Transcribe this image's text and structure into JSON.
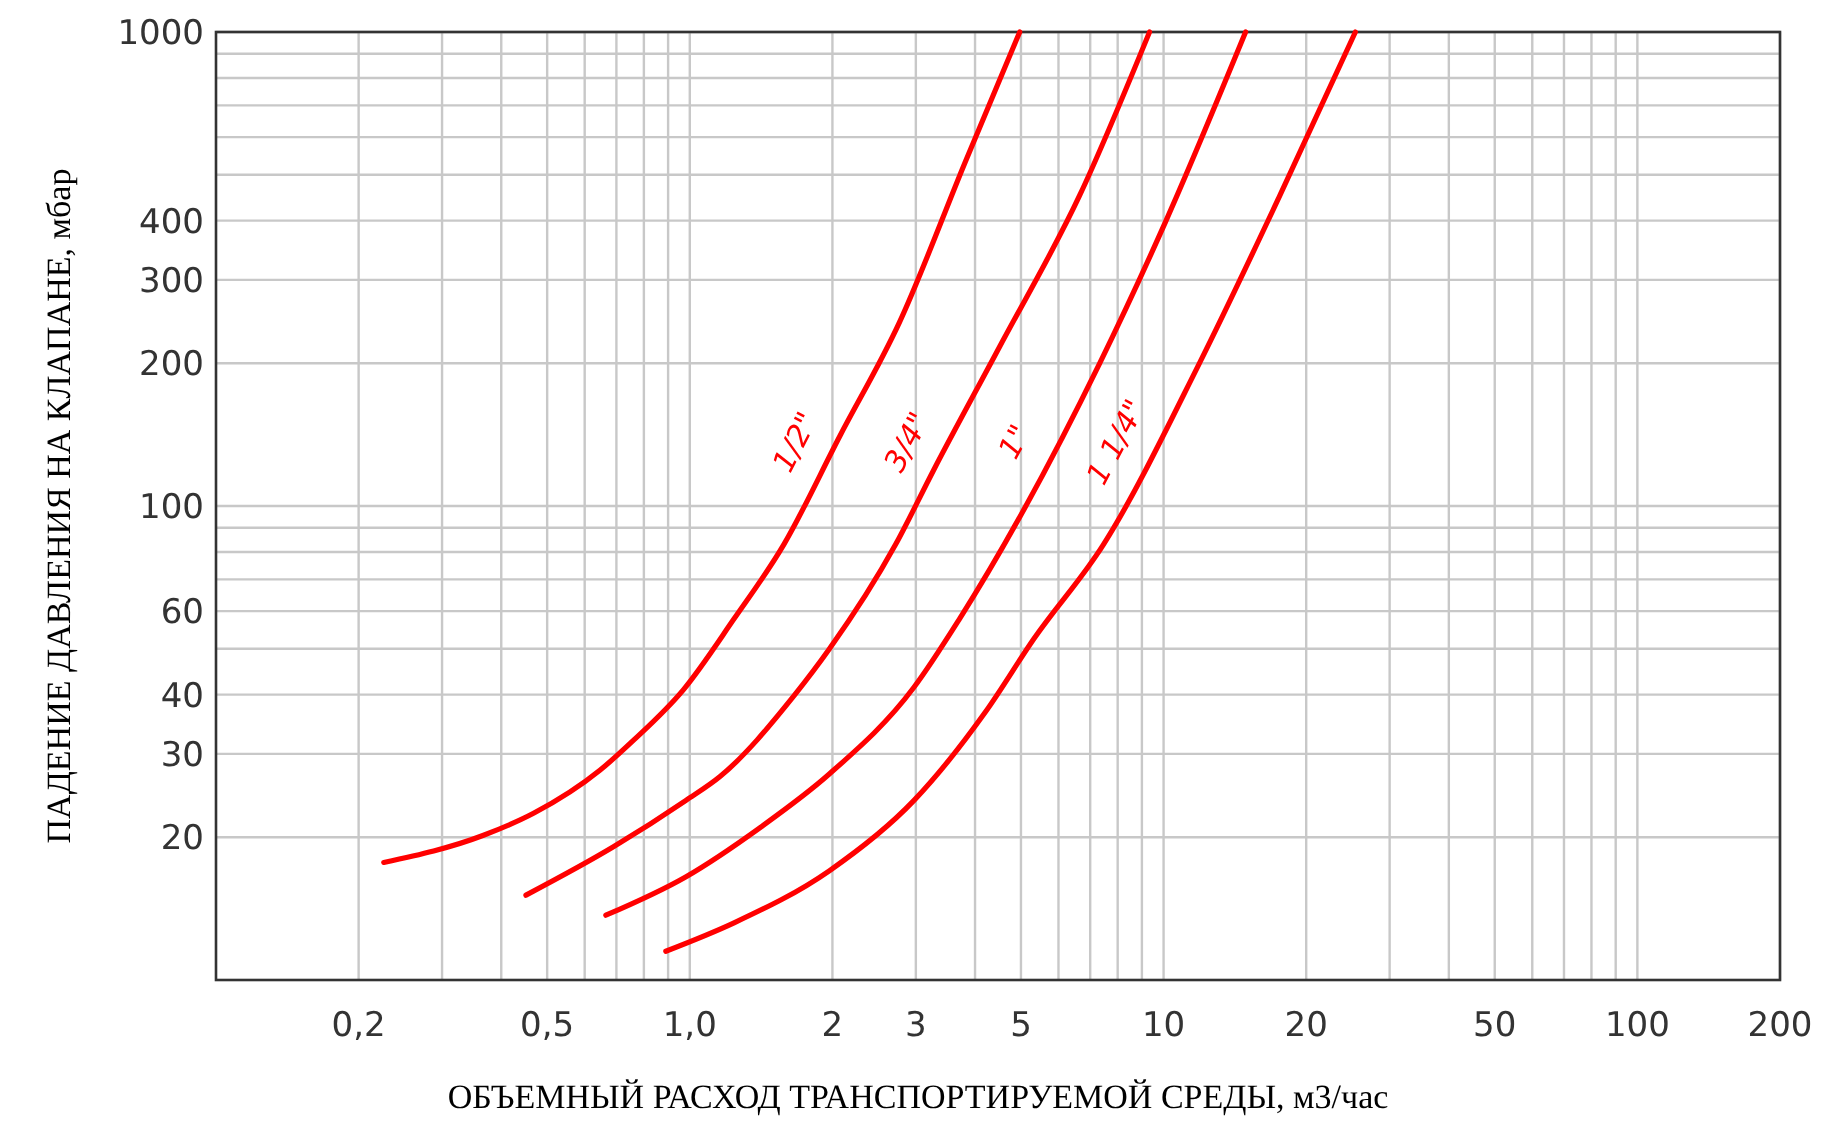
{
  "chart_data": {
    "type": "line",
    "xlabel": "ОБЪЕМНЫЙ РАСХОД ТРАНСПОРТИРУЕМОЙ СРЕДЫ, м3/час",
    "ylabel": "ПАДЕНИЕ ДАВЛЕНИЯ НА КЛАПАНЕ, мбар",
    "log": "xy",
    "grid": true,
    "marker": "none",
    "line_style": "solid",
    "xlim": [
      0.1,
      200
    ],
    "ylim": [
      10,
      1000
    ],
    "xticks": [
      {
        "value": 0.2,
        "label": "0,2"
      },
      {
        "value": 0.3,
        "label": null
      },
      {
        "value": 0.4,
        "label": null
      },
      {
        "value": 0.5,
        "label": "0,5"
      },
      {
        "value": 0.6,
        "label": null
      },
      {
        "value": 0.7,
        "label": null
      },
      {
        "value": 0.8,
        "label": null
      },
      {
        "value": 0.9,
        "label": null
      },
      {
        "value": 1,
        "label": "1,0"
      },
      2,
      3,
      {
        "value": 4,
        "label": null
      },
      5,
      {
        "value": 6,
        "label": null
      },
      {
        "value": 7,
        "label": null
      },
      {
        "value": 8,
        "label": null
      },
      {
        "value": 9,
        "label": null
      },
      10,
      20,
      {
        "value": 30,
        "label": null
      },
      {
        "value": 40,
        "label": null
      },
      50,
      {
        "value": 60,
        "label": null
      },
      {
        "value": 70,
        "label": null
      },
      {
        "value": 80,
        "label": null
      },
      {
        "value": 90,
        "label": null
      },
      100,
      200
    ],
    "yticks": [
      20,
      30,
      40,
      {
        "value": 50,
        "label": null
      },
      60,
      {
        "value": 70,
        "label": null
      },
      {
        "value": 80,
        "label": null
      },
      {
        "value": 90,
        "label": null
      },
      100,
      200,
      300,
      400,
      {
        "value": 500,
        "label": null
      },
      {
        "value": 600,
        "label": null
      },
      {
        "value": 700,
        "label": null
      },
      {
        "value": 800,
        "label": null
      },
      {
        "value": 900,
        "label": null
      },
      1000
    ],
    "series": [
      {
        "name": "1/2\"",
        "color": "#ff0000",
        "x": [
          0.226,
          0.367,
          0.469,
          0.646,
          0.762,
          0.97,
          1.24,
          1.58,
          2.07,
          2.77,
          3.82,
          4.97
        ],
        "values": [
          17.7,
          20.2,
          22.5,
          27.7,
          32.1,
          41,
          57.8,
          83,
          140,
          244,
          534,
          1000
        ]
      },
      {
        "name": "3/4\"",
        "color": "#ff0000",
        "x": [
          0.451,
          0.69,
          0.98,
          1.16,
          1.66,
          1.97,
          2.72,
          3.27,
          4.51,
          6.65,
          9.34
        ],
        "values": [
          15.1,
          19.1,
          23.9,
          26.9,
          39.8,
          49.9,
          83,
          119,
          217,
          452,
          1000
        ]
      },
      {
        "name": "1\"",
        "color": "#ff0000",
        "x": [
          0.665,
          0.98,
          1.41,
          1.97,
          2.97,
          3.71,
          7.33,
          10.1,
          14.9
        ],
        "values": [
          13.7,
          16.5,
          21,
          27.2,
          41.4,
          57.8,
          200,
          398,
          1000
        ]
      },
      {
        "name": "1 1/4\"",
        "color": "#ff0000",
        "x": [
          0.89,
          1.24,
          1.97,
          2.97,
          4.21,
          5.32,
          7.47,
          11.9,
          17.6,
          25.4
        ],
        "values": [
          11.5,
          13.2,
          17,
          23.9,
          36.8,
          52.4,
          83,
          200,
          452,
          1000
        ]
      }
    ]
  }
}
